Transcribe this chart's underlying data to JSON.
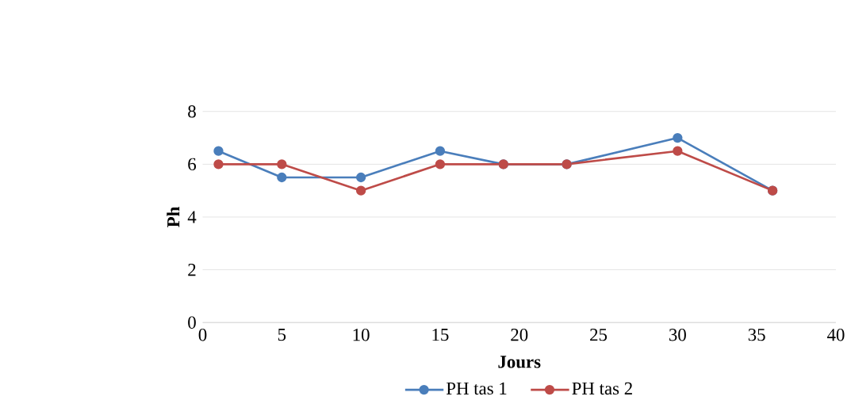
{
  "chart_data": {
    "type": "line",
    "xlabel": "Jours",
    "ylabel": "Ph",
    "x": [
      1,
      5,
      10,
      15,
      19,
      23,
      30,
      36
    ],
    "series": [
      {
        "name": "PH tas 1",
        "color": "#4a7ebb",
        "values": [
          6.5,
          5.5,
          5.5,
          6.5,
          6,
          6,
          7,
          5
        ]
      },
      {
        "name": "PH tas 2",
        "color": "#be4b48",
        "values": [
          6,
          6,
          5,
          6,
          6,
          6,
          6.5,
          5
        ]
      }
    ],
    "xlim": [
      0,
      40
    ],
    "xticks": [
      0,
      5,
      10,
      15,
      20,
      25,
      30,
      35,
      40
    ],
    "ylim": [
      0,
      8
    ],
    "yticks": [
      0,
      2,
      4,
      6,
      8
    ],
    "grid": "y",
    "legend": "bottom",
    "marker": "circle",
    "line_style": "solid"
  }
}
